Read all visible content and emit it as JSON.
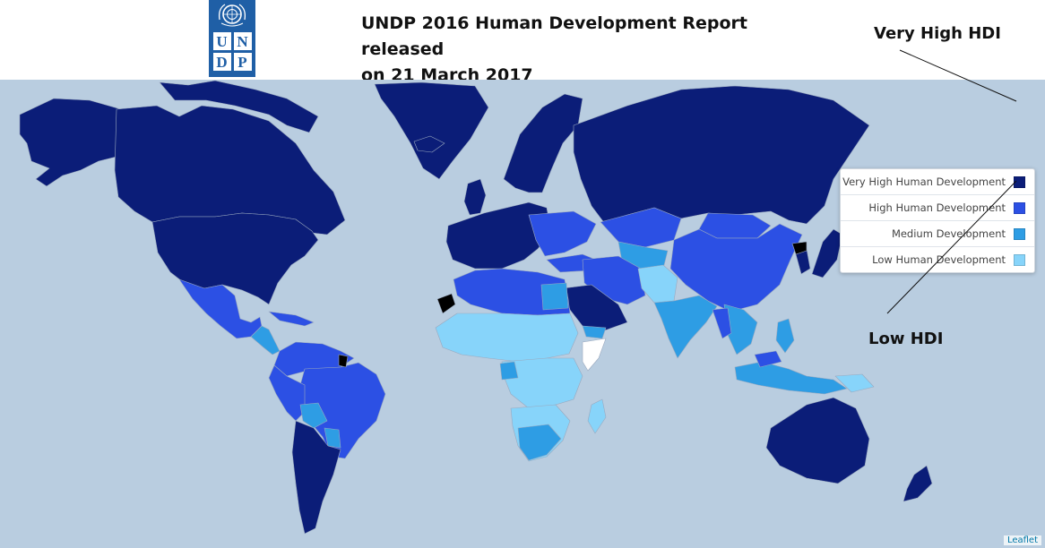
{
  "header": {
    "logo": {
      "letters": [
        "U",
        "N",
        "D",
        "P"
      ],
      "emblem": "un-emblem-icon"
    },
    "title_line1": "UNDP 2016 Human Development Report released",
    "title_line2": "on 21 March 2017"
  },
  "annotations": {
    "very_high": "Very High HDI",
    "low": "Low HDI"
  },
  "legend": {
    "items": [
      {
        "label": "Very High Human Development",
        "color": "#0b1d78"
      },
      {
        "label": "High Human Development",
        "color": "#2c50e4"
      },
      {
        "label": "Medium Development",
        "color": "#2e9de4"
      },
      {
        "label": "Low Human Development",
        "color": "#87d4fa"
      }
    ]
  },
  "map": {
    "ocean_color": "#b9cde0",
    "no_data_colors": [
      "#000000",
      "#ffffff"
    ],
    "attribution": "Leaflet"
  }
}
